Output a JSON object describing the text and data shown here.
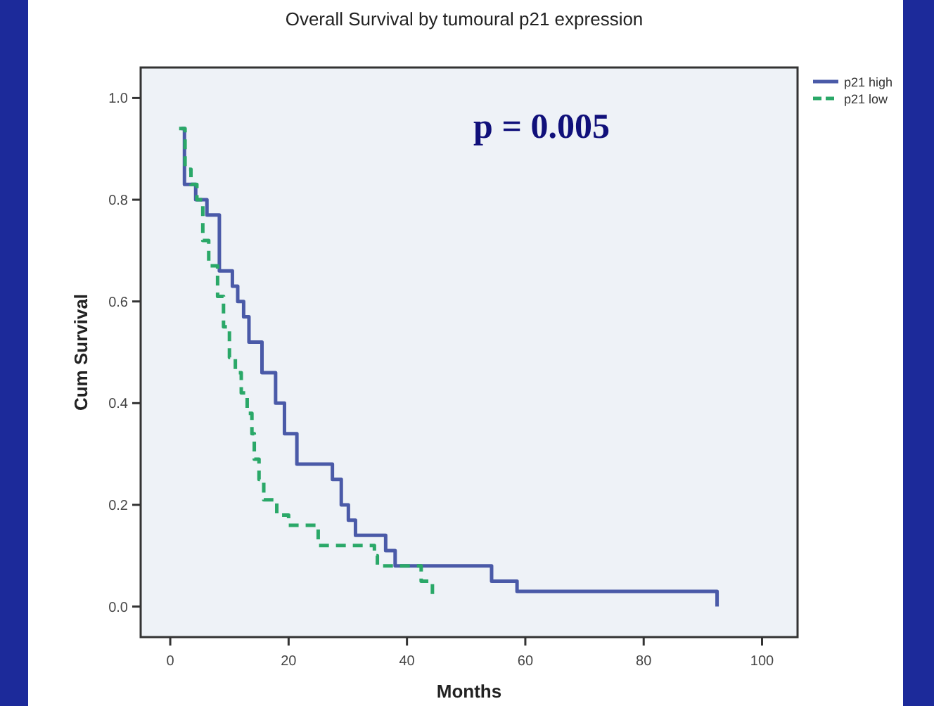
{
  "chart_data": {
    "type": "step",
    "title": "Overall Survival by tumoural p21 expression",
    "xlabel": "Months",
    "ylabel": "Cum Survival",
    "annotations": [
      "p = 0.005"
    ],
    "xlim": [
      -5,
      106
    ],
    "ylim": [
      -0.06,
      1.06
    ],
    "xticks": [
      0,
      20,
      40,
      60,
      80,
      100
    ],
    "yticks": [
      {
        "value": 0,
        "label": "0.0"
      },
      {
        "value": 0.2,
        "label": "0.2"
      },
      {
        "value": 0.4,
        "label": "0.4"
      },
      {
        "value": 0.6,
        "label": "0.6"
      },
      {
        "value": 0.8,
        "label": "0.8"
      },
      {
        "value": 1,
        "label": "1.0"
      }
    ],
    "legend": "top right",
    "marker": "none",
    "grid": false,
    "series": [
      {
        "name": "p21 high",
        "color": "#4a5aa8",
        "line_style": "solid",
        "x": [
          1.9,
          2.4,
          4.3,
          6.2,
          8.3,
          10.5,
          11.4,
          12.4,
          13.3,
          15.5,
          17.8,
          19.3,
          21.4,
          27.4,
          28.9,
          30.1,
          31.3,
          36.4,
          38,
          54.3,
          58.6,
          92.4
        ],
        "values": [
          0.94,
          0.83,
          0.8,
          0.77,
          0.66,
          0.63,
          0.6,
          0.57,
          0.52,
          0.46,
          0.4,
          0.34,
          0.28,
          0.25,
          0.2,
          0.17,
          0.14,
          0.11,
          0.08,
          0.05,
          0.03,
          0.0
        ]
      },
      {
        "name": "p21 low",
        "color": "#2aa868",
        "line_style": "dashed",
        "x": [
          1.5,
          2.5,
          3.5,
          4.5,
          5.5,
          6.5,
          8,
          9,
          10,
          11,
          12,
          13,
          13.8,
          14.2,
          15,
          15.8,
          18,
          20,
          25,
          34.5,
          35,
          42.4,
          44.3
        ],
        "values": [
          0.94,
          0.86,
          0.83,
          0.8,
          0.72,
          0.67,
          0.61,
          0.55,
          0.49,
          0.46,
          0.42,
          0.38,
          0.34,
          0.29,
          0.25,
          0.21,
          0.18,
          0.16,
          0.12,
          0.1,
          0.08,
          0.05,
          0.02
        ]
      }
    ]
  }
}
